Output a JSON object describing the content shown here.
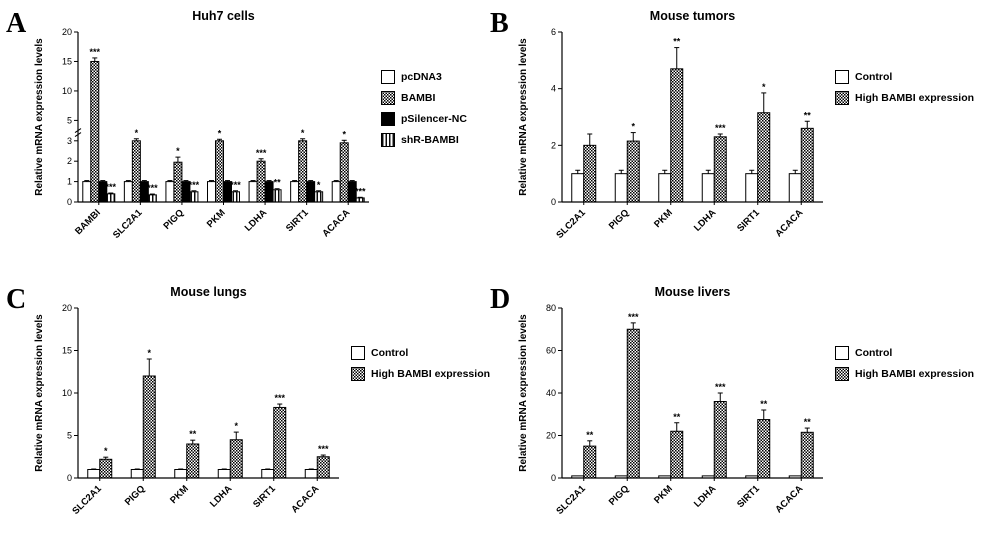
{
  "colors": {
    "ink": "#000000",
    "background": "#ffffff"
  },
  "chart_data": [
    {
      "letter": "A",
      "type": "bar",
      "title": "Huh7 cells",
      "ylabel": "Relative mRNA expression levels",
      "categories": [
        "BAMBI",
        "SLC2A1",
        "PIGQ",
        "PKM",
        "LDHA",
        "SIRT1",
        "ACACA"
      ],
      "ylim": [
        0,
        20
      ],
      "axis_break": {
        "lower_max": 3,
        "upper_min": 5,
        "upper_max": 20,
        "lower_frac": 0.36,
        "gap_frac": 0.12
      },
      "lower_ticks": [
        0,
        1,
        2,
        3
      ],
      "upper_ticks": [
        5,
        10,
        15,
        20
      ],
      "legend_position": "right",
      "grid": false,
      "series": [
        {
          "name": "pcDNA3",
          "fill": "white",
          "values": [
            1,
            1,
            1,
            1,
            1,
            1,
            1
          ],
          "errors": [
            0.05,
            0.05,
            0.05,
            0.05,
            0.05,
            0.05,
            0.05
          ],
          "sig": [
            "",
            "",
            "",
            "",
            "",
            "",
            ""
          ]
        },
        {
          "name": "BAMBI",
          "fill": "checker",
          "values": [
            15,
            3,
            1.95,
            3,
            2,
            3,
            2.9
          ],
          "errors": [
            0.6,
            0.2,
            0.25,
            0.15,
            0.12,
            0.2,
            0.15
          ],
          "sig": [
            "***",
            "*",
            "*",
            "*",
            "***",
            "*",
            "*"
          ]
        },
        {
          "name": "pSilencer-NC",
          "fill": "black",
          "values": [
            1,
            1,
            1,
            1,
            1,
            1,
            1
          ],
          "errors": [
            0.05,
            0.05,
            0.05,
            0.05,
            0.05,
            0.05,
            0.05
          ],
          "sig": [
            "",
            "",
            "",
            "",
            "",
            "",
            ""
          ]
        },
        {
          "name": "shR-BAMBI",
          "fill": "stripes",
          "values": [
            0.4,
            0.35,
            0.5,
            0.5,
            0.6,
            0.5,
            0.2
          ],
          "errors": [
            0.04,
            0.04,
            0.05,
            0.05,
            0.05,
            0.05,
            0.03
          ],
          "sig": [
            "***",
            "***",
            "***",
            "***",
            "**",
            "*",
            "***"
          ]
        }
      ]
    },
    {
      "letter": "B",
      "type": "bar",
      "title": "Mouse tumors",
      "ylabel": "Relative mRNA expression levels",
      "categories": [
        "SLC2A1",
        "PIGQ",
        "PKM",
        "LDHA",
        "SIRT1",
        "ACACA"
      ],
      "ylim": [
        0,
        6
      ],
      "yticks": [
        0,
        2,
        4,
        6
      ],
      "legend_position": "right",
      "grid": false,
      "series": [
        {
          "name": "Control",
          "fill": "white",
          "values": [
            1,
            1,
            1,
            1,
            1,
            1
          ],
          "errors": [
            0.12,
            0.12,
            0.12,
            0.12,
            0.12,
            0.12
          ],
          "sig": [
            "",
            "",
            "",
            "",
            "",
            ""
          ]
        },
        {
          "name": "High BAMBI expression",
          "fill": "checker",
          "values": [
            2.0,
            2.15,
            4.7,
            2.3,
            3.15,
            2.6
          ],
          "errors": [
            0.4,
            0.3,
            0.75,
            0.1,
            0.7,
            0.25
          ],
          "sig": [
            "",
            "*",
            "**",
            "***",
            "*",
            "**"
          ]
        }
      ]
    },
    {
      "letter": "C",
      "type": "bar",
      "title": "Mouse lungs",
      "ylabel": "Relative mRNA expression levels",
      "categories": [
        "SLC2A1",
        "PIGQ",
        "PKM",
        "LDHA",
        "SIRT1",
        "ACACA"
      ],
      "ylim": [
        0,
        20
      ],
      "yticks": [
        0,
        5,
        10,
        15,
        20
      ],
      "legend_position": "right",
      "grid": false,
      "series": [
        {
          "name": "Control",
          "fill": "white",
          "values": [
            1,
            1,
            1,
            1,
            1,
            1
          ],
          "errors": [
            0.06,
            0.06,
            0.06,
            0.06,
            0.06,
            0.06
          ],
          "sig": [
            "",
            "",
            "",
            "",
            "",
            ""
          ]
        },
        {
          "name": "High BAMBI expression",
          "fill": "checker",
          "values": [
            2.2,
            12,
            4.0,
            4.5,
            8.3,
            2.5
          ],
          "errors": [
            0.25,
            2.0,
            0.45,
            0.9,
            0.4,
            0.2
          ],
          "sig": [
            "*",
            "*",
            "**",
            "*",
            "***",
            "***"
          ]
        }
      ]
    },
    {
      "letter": "D",
      "type": "bar",
      "title": "Mouse livers",
      "ylabel": "Relative mRNA expression levels",
      "categories": [
        "SLC2A1",
        "PIGQ",
        "PKM",
        "LDHA",
        "SIRT1",
        "ACACA"
      ],
      "ylim": [
        0,
        80
      ],
      "yticks": [
        0,
        20,
        40,
        60,
        80
      ],
      "legend_position": "right",
      "grid": false,
      "series": [
        {
          "name": "Control",
          "fill": "white",
          "values": [
            1,
            1,
            1,
            1,
            1,
            1
          ],
          "errors": [
            0,
            0,
            0,
            0,
            0,
            0
          ],
          "sig": [
            "",
            "",
            "",
            "",
            "",
            ""
          ]
        },
        {
          "name": "High BAMBI expression",
          "fill": "checker",
          "values": [
            15,
            70,
            22,
            36,
            27.5,
            21.5
          ],
          "errors": [
            2.5,
            3,
            4,
            4,
            4.5,
            2
          ],
          "sig": [
            "**",
            "***",
            "**",
            "***",
            "**",
            "**"
          ]
        }
      ]
    }
  ]
}
